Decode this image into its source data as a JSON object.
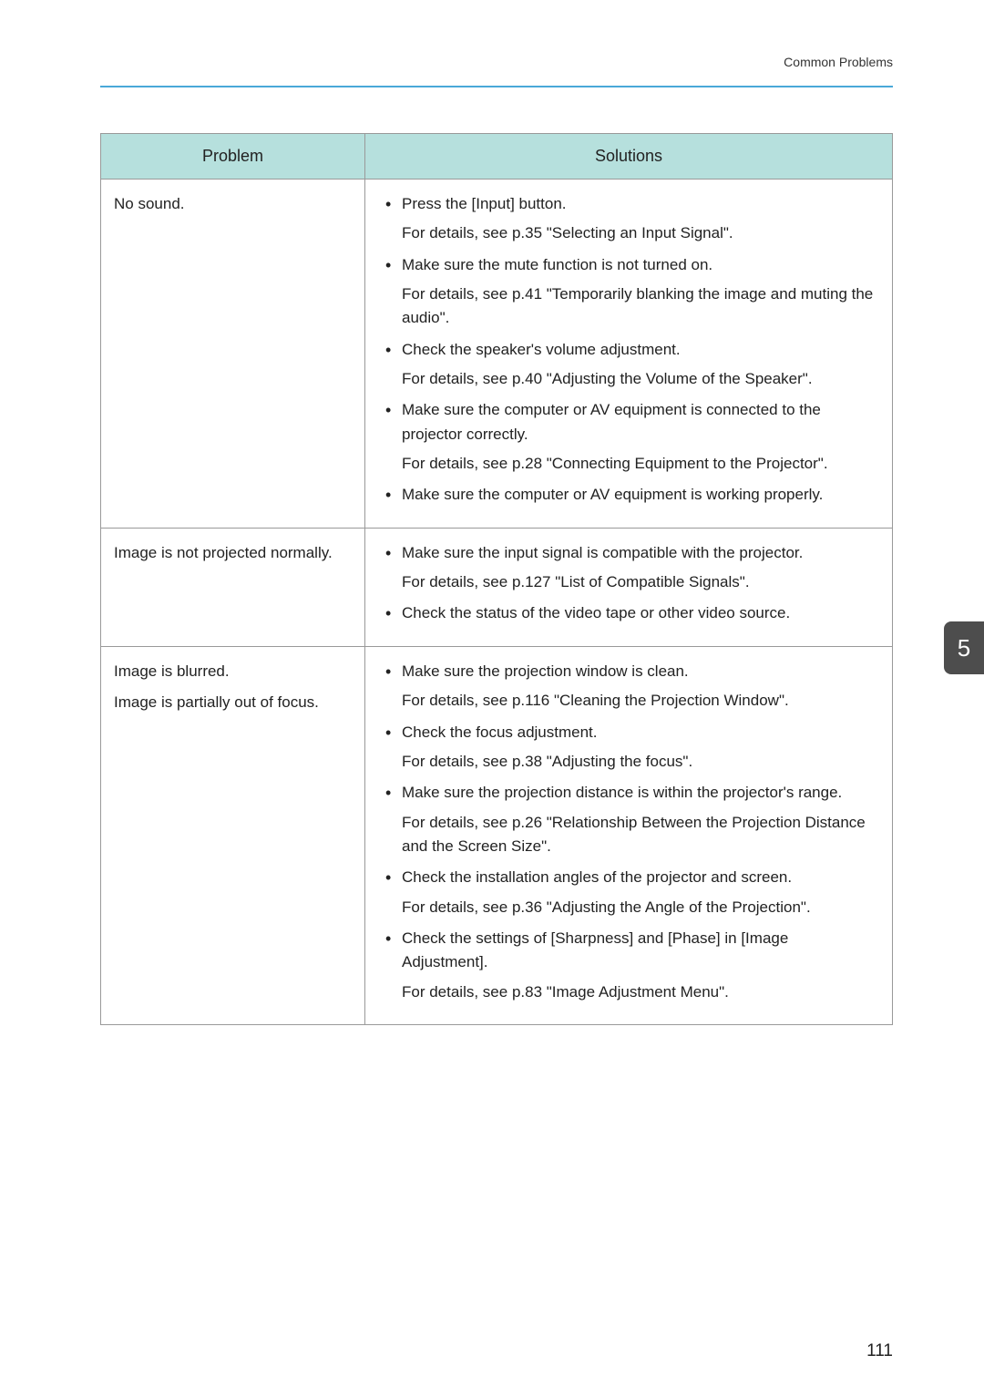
{
  "header": {
    "section_title": "Common Problems"
  },
  "colors": {
    "header_rule": "#4aa8d8",
    "th_bg": "#b6e0dd",
    "border": "#999999",
    "tab_bg": "#4d4d4d",
    "tab_text": "#ffffff",
    "text": "#222222"
  },
  "table": {
    "headers": {
      "problem": "Problem",
      "solutions": "Solutions"
    },
    "rows": [
      {
        "problem": "No sound.",
        "items": [
          {
            "main": "Press the [Input] button.",
            "detail": "For details, see p.35 \"Selecting an Input Signal\"."
          },
          {
            "main": "Make sure the mute function is not turned on.",
            "detail": "For details, see p.41 \"Temporarily blanking the image and muting the audio\"."
          },
          {
            "main": "Check the speaker's volume adjustment.",
            "detail": "For details, see p.40 \"Adjusting the Volume of the Speaker\"."
          },
          {
            "main": "Make sure the computer or AV equipment is connected to the projector correctly.",
            "detail": "For details, see p.28 \"Connecting Equipment to the Projector\"."
          },
          {
            "main": "Make sure the computer or AV equipment is working properly.",
            "detail": ""
          }
        ]
      },
      {
        "problem": "Image is not projected normally.",
        "items": [
          {
            "main": "Make sure the input signal is compatible with the projector.",
            "detail": "For details, see p.127 \"List of Compatible Signals\"."
          },
          {
            "main": "Check the status of the video tape or other video source.",
            "detail": ""
          }
        ]
      },
      {
        "problem": "Image is blurred.\nImage is partially out of focus.",
        "items": [
          {
            "main": "Make sure the projection window is clean.",
            "detail": "For details, see p.116 \"Cleaning the Projection Window\"."
          },
          {
            "main": "Check the focus adjustment.",
            "detail": "For details, see p.38 \"Adjusting the focus\"."
          },
          {
            "main": "Make sure the projection distance is within the projector's range.",
            "detail": "For details, see p.26 \"Relationship Between the Projection Distance and the Screen Size\"."
          },
          {
            "main": "Check the installation angles of the projector and screen.",
            "detail": "For details, see p.36 \"Adjusting the Angle of the Projection\"."
          },
          {
            "main": "Check the settings of [Sharpness] and [Phase] in [Image Adjustment].",
            "detail": "For details, see p.83 \"Image Adjustment Menu\"."
          }
        ]
      }
    ]
  },
  "side_tab": {
    "label": "5"
  },
  "page_number": "111"
}
